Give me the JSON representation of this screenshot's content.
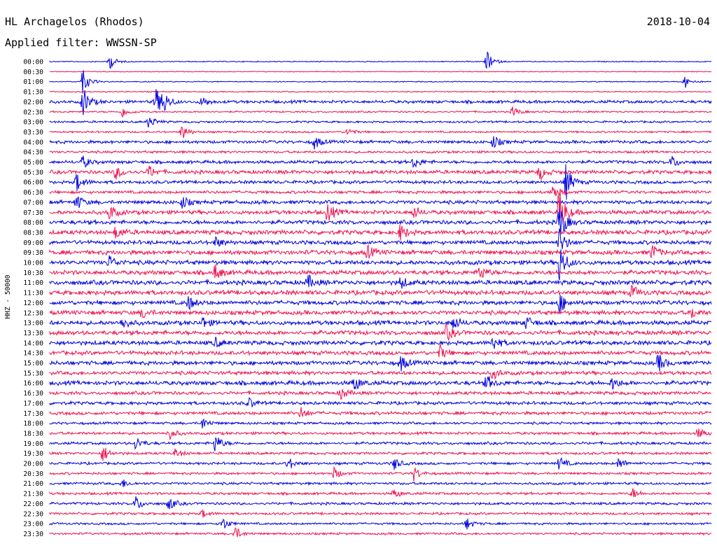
{
  "chart_data": {
    "type": "line",
    "title": "HL Archagelos (Rhodos)",
    "date": "2018-10-04",
    "subtitle": "Applied filter: WWSSN-SP",
    "ylabel": "HHZ - 50000",
    "xlabel": "",
    "grid": false,
    "series_colors": [
      "#0000dd",
      "#ee1050"
    ],
    "y_tick_labels": [
      "00:00",
      "00:30",
      "01:00",
      "01:30",
      "02:00",
      "02:30",
      "03:00",
      "03:30",
      "04:00",
      "04:30",
      "05:00",
      "05:30",
      "06:00",
      "06:30",
      "07:00",
      "07:30",
      "08:00",
      "08:30",
      "09:00",
      "09:30",
      "10:00",
      "10:30",
      "11:00",
      "11:30",
      "12:00",
      "12:30",
      "13:00",
      "13:30",
      "14:00",
      "14:30",
      "15:00",
      "15:30",
      "16:00",
      "16:30",
      "17:00",
      "17:30",
      "18:00",
      "18:30",
      "19:00",
      "19:30",
      "20:00",
      "20:30",
      "21:00",
      "21:30",
      "22:00",
      "22:30",
      "23:00",
      "23:30"
    ],
    "noise_level": [
      0.6,
      0.5,
      0.6,
      0.7,
      1.8,
      1.0,
      1.2,
      1.1,
      1.8,
      1.4,
      1.9,
      2.2,
      1.9,
      1.7,
      2.2,
      2.4,
      2.4,
      2.6,
      2.4,
      2.6,
      2.6,
      2.6,
      2.7,
      2.7,
      2.5,
      2.5,
      2.6,
      2.6,
      2.5,
      2.4,
      2.4,
      2.2,
      2.5,
      2.0,
      1.9,
      1.9,
      1.5,
      1.6,
      1.6,
      1.5,
      1.5,
      1.4,
      1.5,
      1.5,
      1.5,
      1.4,
      1.3,
      1.3
    ],
    "events": [
      {
        "row": 0,
        "x": 0.09,
        "amp": 12
      },
      {
        "row": 0,
        "x": 0.66,
        "amp": 16
      },
      {
        "row": 2,
        "x": 0.05,
        "amp": 18
      },
      {
        "row": 2,
        "x": 0.96,
        "amp": 9
      },
      {
        "row": 4,
        "x": 0.05,
        "amp": 22
      },
      {
        "row": 4,
        "x": 0.16,
        "amp": 20
      },
      {
        "row": 4,
        "x": 0.17,
        "amp": 16
      },
      {
        "row": 4,
        "x": 0.23,
        "amp": 8
      },
      {
        "row": 5,
        "x": 0.11,
        "amp": 8
      },
      {
        "row": 5,
        "x": 0.7,
        "amp": 8
      },
      {
        "row": 6,
        "x": 0.15,
        "amp": 10
      },
      {
        "row": 7,
        "x": 0.2,
        "amp": 12
      },
      {
        "row": 7,
        "x": 0.45,
        "amp": 6
      },
      {
        "row": 8,
        "x": 0.4,
        "amp": 10
      },
      {
        "row": 8,
        "x": 0.67,
        "amp": 10
      },
      {
        "row": 10,
        "x": 0.05,
        "amp": 9
      },
      {
        "row": 10,
        "x": 0.55,
        "amp": 9
      },
      {
        "row": 10,
        "x": 0.94,
        "amp": 9
      },
      {
        "row": 11,
        "x": 0.1,
        "amp": 10
      },
      {
        "row": 11,
        "x": 0.15,
        "amp": 9
      },
      {
        "row": 11,
        "x": 0.74,
        "amp": 11
      },
      {
        "row": 12,
        "x": 0.04,
        "amp": 14
      },
      {
        "row": 12,
        "x": 0.78,
        "amp": 26
      },
      {
        "row": 13,
        "x": 0.76,
        "amp": 12
      },
      {
        "row": 14,
        "x": 0.04,
        "amp": 12
      },
      {
        "row": 14,
        "x": 0.2,
        "amp": 9
      },
      {
        "row": 15,
        "x": 0.09,
        "amp": 12
      },
      {
        "row": 15,
        "x": 0.42,
        "amp": 15
      },
      {
        "row": 15,
        "x": 0.55,
        "amp": 9
      },
      {
        "row": 15,
        "x": 0.77,
        "amp": 38
      },
      {
        "row": 16,
        "x": 0.77,
        "amp": 30
      },
      {
        "row": 17,
        "x": 0.1,
        "amp": 10
      },
      {
        "row": 17,
        "x": 0.53,
        "amp": 12
      },
      {
        "row": 18,
        "x": 0.77,
        "amp": 20
      },
      {
        "row": 18,
        "x": 0.25,
        "amp": 8
      },
      {
        "row": 19,
        "x": 0.48,
        "amp": 10
      },
      {
        "row": 19,
        "x": 0.91,
        "amp": 12
      },
      {
        "row": 20,
        "x": 0.09,
        "amp": 10
      },
      {
        "row": 20,
        "x": 0.77,
        "amp": 30
      },
      {
        "row": 21,
        "x": 0.25,
        "amp": 12
      },
      {
        "row": 21,
        "x": 0.65,
        "amp": 12
      },
      {
        "row": 22,
        "x": 0.39,
        "amp": 10
      },
      {
        "row": 22,
        "x": 0.53,
        "amp": 9
      },
      {
        "row": 23,
        "x": 0.88,
        "amp": 10
      },
      {
        "row": 24,
        "x": 0.21,
        "amp": 10
      },
      {
        "row": 24,
        "x": 0.77,
        "amp": 16
      },
      {
        "row": 25,
        "x": 0.14,
        "amp": 8
      },
      {
        "row": 25,
        "x": 0.97,
        "amp": 8
      },
      {
        "row": 26,
        "x": 0.11,
        "amp": 9
      },
      {
        "row": 26,
        "x": 0.23,
        "amp": 9
      },
      {
        "row": 26,
        "x": 0.61,
        "amp": 11
      },
      {
        "row": 26,
        "x": 0.72,
        "amp": 10
      },
      {
        "row": 27,
        "x": 0.6,
        "amp": 12
      },
      {
        "row": 28,
        "x": 0.67,
        "amp": 11
      },
      {
        "row": 28,
        "x": 0.25,
        "amp": 7
      },
      {
        "row": 29,
        "x": 0.59,
        "amp": 10
      },
      {
        "row": 30,
        "x": 0.53,
        "amp": 12
      },
      {
        "row": 30,
        "x": 0.92,
        "amp": 14
      },
      {
        "row": 31,
        "x": 0.67,
        "amp": 9
      },
      {
        "row": 32,
        "x": 0.46,
        "amp": 12
      },
      {
        "row": 32,
        "x": 0.66,
        "amp": 11
      },
      {
        "row": 32,
        "x": 0.85,
        "amp": 10
      },
      {
        "row": 33,
        "x": 0.44,
        "amp": 9
      },
      {
        "row": 34,
        "x": 0.3,
        "amp": 8
      },
      {
        "row": 35,
        "x": 0.38,
        "amp": 9
      },
      {
        "row": 36,
        "x": 0.23,
        "amp": 9
      },
      {
        "row": 37,
        "x": 0.18,
        "amp": 10
      },
      {
        "row": 37,
        "x": 0.98,
        "amp": 8
      },
      {
        "row": 38,
        "x": 0.13,
        "amp": 10
      },
      {
        "row": 38,
        "x": 0.25,
        "amp": 14
      },
      {
        "row": 39,
        "x": 0.08,
        "amp": 13
      },
      {
        "row": 39,
        "x": 0.19,
        "amp": 7
      },
      {
        "row": 40,
        "x": 0.36,
        "amp": 10
      },
      {
        "row": 40,
        "x": 0.52,
        "amp": 10
      },
      {
        "row": 40,
        "x": 0.77,
        "amp": 10
      },
      {
        "row": 40,
        "x": 0.86,
        "amp": 9
      },
      {
        "row": 41,
        "x": 0.43,
        "amp": 9
      },
      {
        "row": 41,
        "x": 0.55,
        "amp": 11
      },
      {
        "row": 42,
        "x": 0.11,
        "amp": 6
      },
      {
        "row": 43,
        "x": 0.52,
        "amp": 7
      },
      {
        "row": 43,
        "x": 0.88,
        "amp": 8
      },
      {
        "row": 44,
        "x": 0.13,
        "amp": 11
      },
      {
        "row": 44,
        "x": 0.18,
        "amp": 10
      },
      {
        "row": 45,
        "x": 0.23,
        "amp": 6
      },
      {
        "row": 46,
        "x": 0.26,
        "amp": 11
      },
      {
        "row": 46,
        "x": 0.63,
        "amp": 9
      },
      {
        "row": 47,
        "x": 0.28,
        "amp": 10
      }
    ]
  }
}
